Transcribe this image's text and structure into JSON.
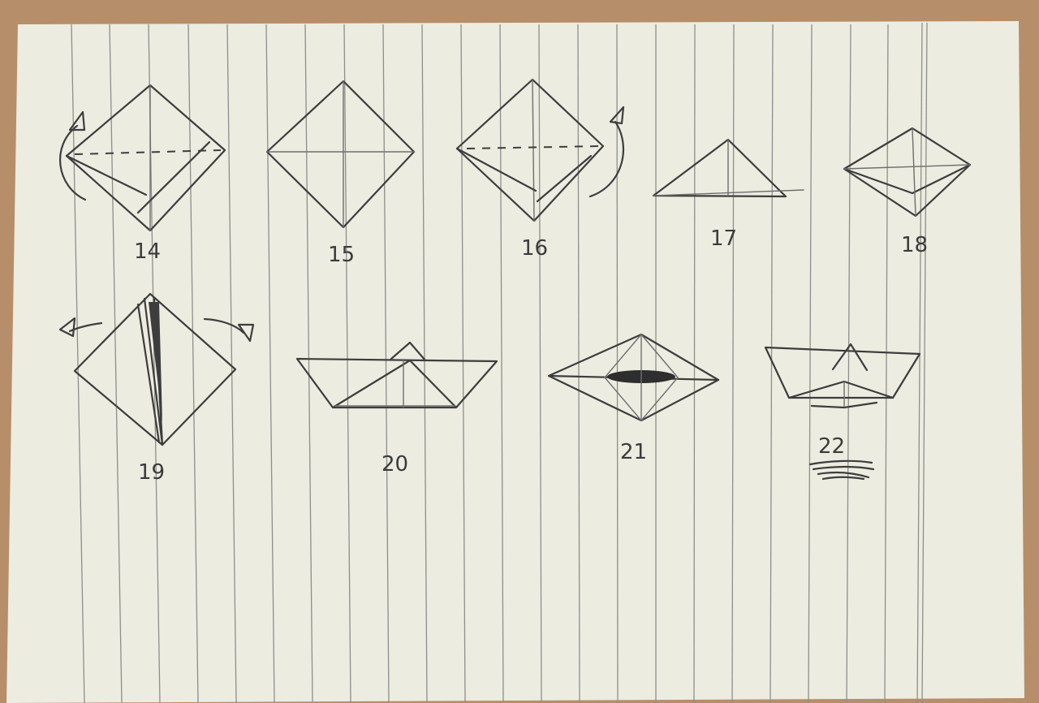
{
  "steps": [
    {
      "label": "14"
    },
    {
      "label": "15"
    },
    {
      "label": "16"
    },
    {
      "label": "17"
    },
    {
      "label": "18"
    },
    {
      "label": "19"
    },
    {
      "label": "20"
    },
    {
      "label": "21"
    },
    {
      "label": "22"
    }
  ]
}
